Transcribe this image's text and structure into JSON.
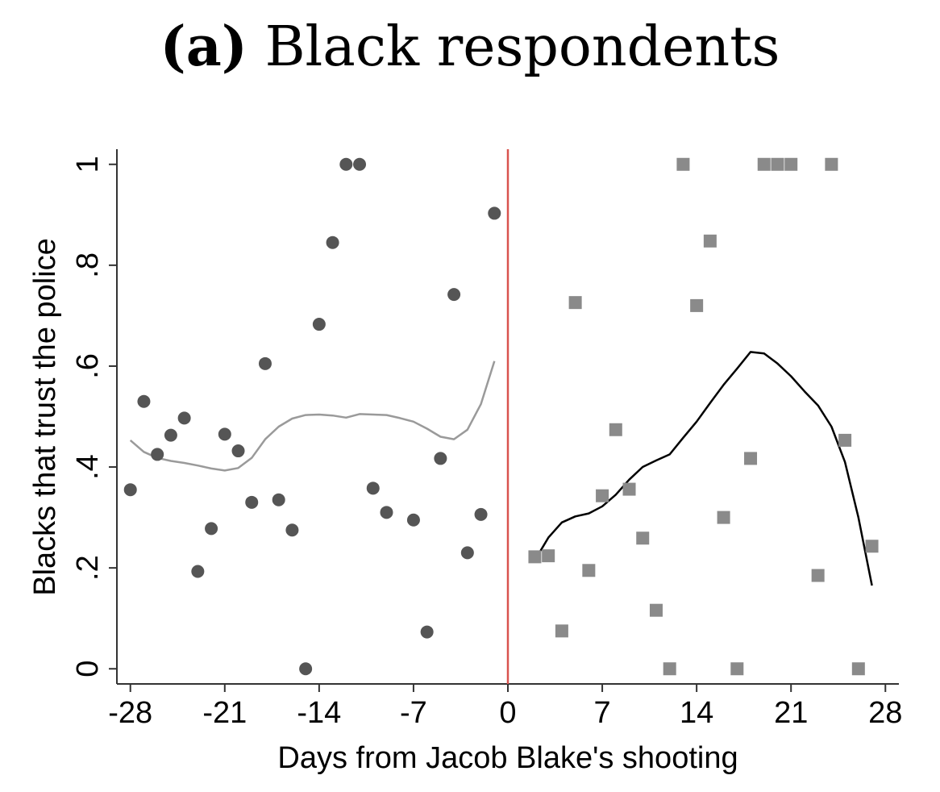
{
  "title": {
    "label": "(a)",
    "text": "Black respondents"
  },
  "colors": {
    "pre_marker": "#555555",
    "post_marker": "#8a8a8a",
    "pre_fit": "#9a9a9a",
    "post_fit": "#000000",
    "cutoff_line": "#d9534f",
    "axis": "#333333"
  },
  "chart_data": {
    "type": "scatter",
    "xlabel": "Days from Jacob Blake's shooting",
    "ylabel": "Blacks that trust the police",
    "xlim": [
      -29,
      29
    ],
    "ylim": [
      -0.03,
      1.03
    ],
    "xticks": [
      -28,
      -21,
      -14,
      -7,
      0,
      7,
      14,
      21,
      28
    ],
    "xtick_labels": [
      "-28",
      "-21",
      "-14",
      "-7",
      "0",
      "7",
      "14",
      "21",
      "28"
    ],
    "yticks": [
      0,
      0.2,
      0.4,
      0.6,
      0.8,
      1
    ],
    "ytick_labels": [
      "0",
      ".2",
      ".4",
      ".6",
      ".8",
      "1"
    ],
    "grid": false,
    "vertical_line_x": 0,
    "series": [
      {
        "marker": "circle",
        "points": [
          [
            -28,
            0.355
          ],
          [
            -27,
            0.53
          ],
          [
            -26,
            0.425
          ],
          [
            -25,
            0.463
          ],
          [
            -24,
            0.497
          ],
          [
            -23,
            0.193
          ],
          [
            -22,
            0.278
          ],
          [
            -21,
            0.465
          ],
          [
            -20,
            0.432
          ],
          [
            -19,
            0.33
          ],
          [
            -18,
            0.605
          ],
          [
            -17,
            0.335
          ],
          [
            -16,
            0.275
          ],
          [
            -15,
            0.0
          ],
          [
            -14,
            0.683
          ],
          [
            -13,
            0.845
          ],
          [
            -12,
            1.0
          ],
          [
            -11,
            1.0
          ],
          [
            -10,
            0.358
          ],
          [
            -9,
            0.31
          ],
          [
            -7,
            0.295
          ],
          [
            -6,
            0.073
          ],
          [
            -5,
            0.417
          ],
          [
            -4,
            0.742
          ],
          [
            -3,
            0.23
          ],
          [
            -2,
            0.306
          ],
          [
            -1,
            0.903
          ]
        ]
      },
      {
        "marker": "square",
        "points": [
          [
            2,
            0.222
          ],
          [
            3,
            0.224
          ],
          [
            4,
            0.075
          ],
          [
            5,
            0.726
          ],
          [
            6,
            0.195
          ],
          [
            7,
            0.343
          ],
          [
            8,
            0.474
          ],
          [
            9,
            0.356
          ],
          [
            10,
            0.259
          ],
          [
            11,
            0.116
          ],
          [
            12,
            0.0
          ],
          [
            13,
            1.0
          ],
          [
            14,
            0.72
          ],
          [
            15,
            0.848
          ],
          [
            16,
            0.3
          ],
          [
            17,
            0.0
          ],
          [
            18,
            0.417
          ],
          [
            19,
            1.0
          ],
          [
            20,
            1.0
          ],
          [
            21,
            1.0
          ],
          [
            23,
            0.185
          ],
          [
            24,
            1.0
          ],
          [
            25,
            0.453
          ],
          [
            26,
            0.0
          ],
          [
            27,
            0.243
          ]
        ]
      }
    ],
    "fit_lines": [
      {
        "points": [
          [
            -28,
            0.453
          ],
          [
            -27,
            0.43
          ],
          [
            -26,
            0.418
          ],
          [
            -25,
            0.412
          ],
          [
            -24,
            0.408
          ],
          [
            -23,
            0.403
          ],
          [
            -22,
            0.397
          ],
          [
            -21,
            0.393
          ],
          [
            -20,
            0.398
          ],
          [
            -19,
            0.418
          ],
          [
            -18,
            0.455
          ],
          [
            -17,
            0.48
          ],
          [
            -16,
            0.496
          ],
          [
            -15,
            0.503
          ],
          [
            -14,
            0.504
          ],
          [
            -13,
            0.502
          ],
          [
            -12,
            0.498
          ],
          [
            -11,
            0.505
          ],
          [
            -10,
            0.504
          ],
          [
            -9,
            0.503
          ],
          [
            -8,
            0.497
          ],
          [
            -7,
            0.49
          ],
          [
            -6,
            0.476
          ],
          [
            -5,
            0.46
          ],
          [
            -4,
            0.455
          ],
          [
            -3,
            0.474
          ],
          [
            -2,
            0.525
          ],
          [
            -1,
            0.61
          ]
        ]
      },
      {
        "points": [
          [
            2,
            0.215
          ],
          [
            3,
            0.26
          ],
          [
            4,
            0.29
          ],
          [
            5,
            0.302
          ],
          [
            6,
            0.308
          ],
          [
            7,
            0.322
          ],
          [
            8,
            0.345
          ],
          [
            9,
            0.375
          ],
          [
            10,
            0.4
          ],
          [
            11,
            0.413
          ],
          [
            12,
            0.425
          ],
          [
            13,
            0.458
          ],
          [
            14,
            0.49
          ],
          [
            15,
            0.527
          ],
          [
            16,
            0.563
          ],
          [
            17,
            0.595
          ],
          [
            18,
            0.628
          ],
          [
            19,
            0.625
          ],
          [
            20,
            0.605
          ],
          [
            21,
            0.58
          ],
          [
            22,
            0.55
          ],
          [
            23,
            0.522
          ],
          [
            24,
            0.48
          ],
          [
            25,
            0.41
          ],
          [
            26,
            0.3
          ],
          [
            27,
            0.165
          ]
        ]
      }
    ]
  }
}
